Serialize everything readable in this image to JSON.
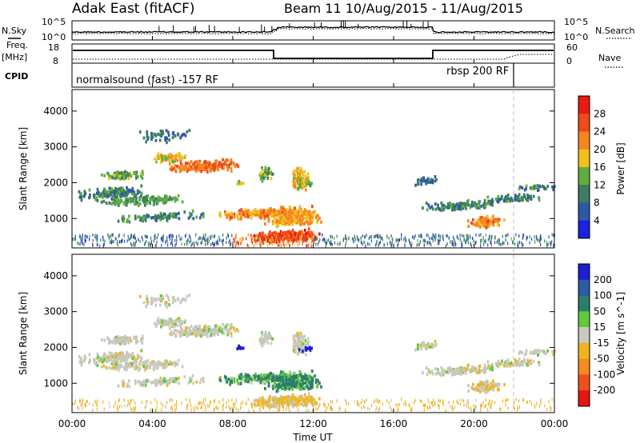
{
  "header": {
    "title": "Adak East (fitACF)",
    "beam_info": "Beam 11  10/Aug/2015 - 11/Aug/2015"
  },
  "left_labels": {
    "nsky": "N.Sky",
    "freq": "Freq.",
    "freq_unit": "[MHz]",
    "cpid": "CPID"
  },
  "right_labels": {
    "nsearch": "N.Search",
    "nave": "Nave"
  },
  "noise_ticks": {
    "top": "10^5",
    "bottom": "10^0"
  },
  "freq_ticks": {
    "left_top": "18",
    "left_bottom": "8",
    "right_top": "60",
    "right_bottom": "0"
  },
  "cpid": {
    "mode1": "normalsound (fast) -157 RF",
    "mode2": "rbsp 200 RF"
  },
  "axes": {
    "ylabel": "Slant Range [km]",
    "xlabel": "Time UT",
    "y_ticks": [
      "4000",
      "3000",
      "2000",
      "1000"
    ],
    "x_ticks": [
      "00:00",
      "04:00",
      "08:00",
      "12:00",
      "16:00",
      "20:00",
      "00:00"
    ]
  },
  "chart_data": [
    {
      "type": "heatmap",
      "name": "power",
      "xlabel": "Time UT",
      "ylabel": "Slant Range [km]",
      "xlim": [
        0,
        24
      ],
      "ylim": [
        180,
        4600
      ],
      "colorbar_label": "Power [dB]",
      "colorbar_ticks": [
        "28",
        "24",
        "20",
        "16",
        "12",
        "8",
        "4"
      ],
      "colorbar_colors": [
        "#e81a12",
        "#ee4a1a",
        "#f5861f",
        "#f2c21c",
        "#5fae3c",
        "#3c7d63",
        "#2f58a6",
        "#1c22e0"
      ],
      "features": [
        {
          "t_start": 0.0,
          "t_end": 10.0,
          "range_km": 2000,
          "power_db": 12
        },
        {
          "t_start": 4.5,
          "t_end": 9.5,
          "range_km": 2400,
          "power_db": 26
        },
        {
          "t_start": 6.5,
          "t_end": 13.5,
          "range_km": 1100,
          "power_db": 20
        },
        {
          "t_start": 8.5,
          "t_end": 12.0,
          "range_km": 450,
          "power_db": 28
        },
        {
          "t_start": 16.5,
          "t_end": 24.0,
          "range_km": 1500,
          "power_db": 10
        },
        {
          "t_start": 19.5,
          "t_end": 21.5,
          "range_km": 1000,
          "power_db": 24
        }
      ]
    },
    {
      "type": "heatmap",
      "name": "velocity",
      "xlabel": "Time UT",
      "ylabel": "Slant Range [km]",
      "xlim": [
        0,
        24
      ],
      "ylim": [
        180,
        4600
      ],
      "colorbar_label": "Velocity [m s^-1]",
      "colorbar_ticks": [
        "200",
        "100",
        "50",
        "15",
        "-15",
        "-50",
        "-100",
        "-200"
      ],
      "colorbar_colors": [
        "#1e1ed2",
        "#2d5aa5",
        "#2d7d6e",
        "#5fc83c",
        "#c8c8c0",
        "#f0b41e",
        "#f58c1e",
        "#f0501e",
        "#e61414"
      ],
      "features": [
        {
          "t_start": 0.0,
          "t_end": 10.0,
          "range_km": 2000,
          "velocity": 0
        },
        {
          "t_start": 4.5,
          "t_end": 9.5,
          "range_km": 2400,
          "velocity": 0
        },
        {
          "t_start": 10.0,
          "t_end": 13.5,
          "range_km": 1100,
          "velocity": 40
        },
        {
          "t_start": 7.0,
          "t_end": 8.0,
          "range_km": 1950,
          "velocity": 220
        },
        {
          "t_start": 0.0,
          "t_end": 24.0,
          "range_km": 300,
          "velocity": -40
        },
        {
          "t_start": 16.5,
          "t_end": 24.0,
          "range_km": 1500,
          "velocity": 0
        }
      ]
    }
  ]
}
